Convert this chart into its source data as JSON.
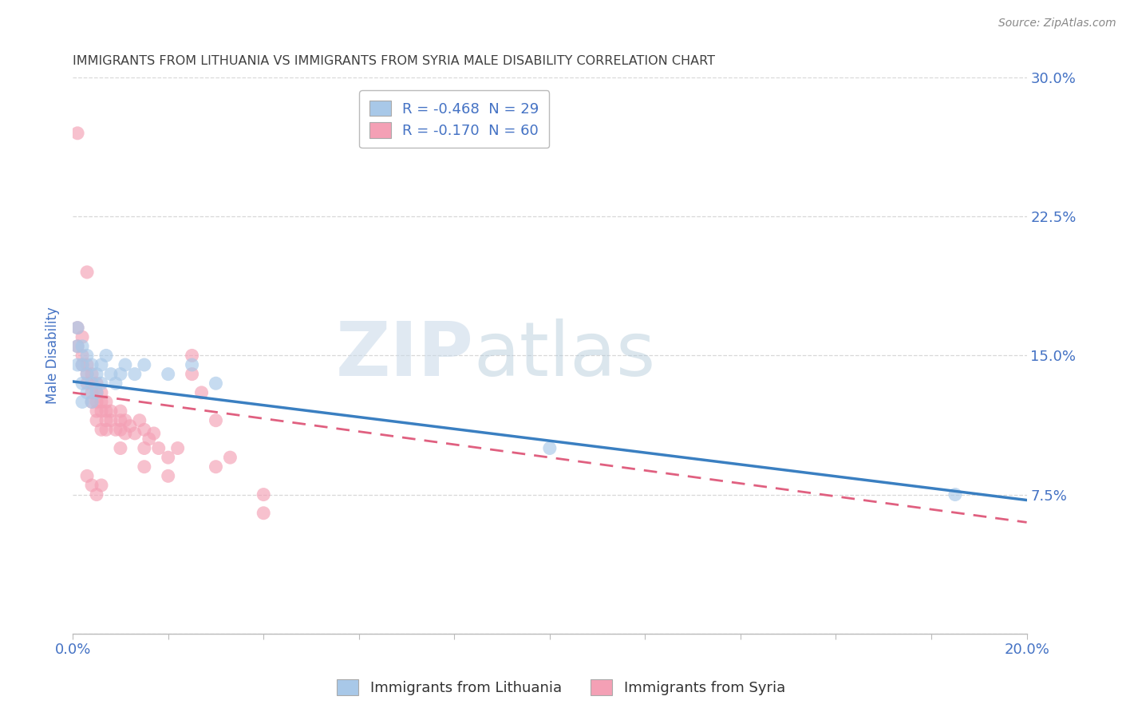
{
  "title": "IMMIGRANTS FROM LITHUANIA VS IMMIGRANTS FROM SYRIA MALE DISABILITY CORRELATION CHART",
  "source": "Source: ZipAtlas.com",
  "ylabel": "Male Disability",
  "xlim": [
    0.0,
    0.2
  ],
  "ylim": [
    0.0,
    0.3
  ],
  "xticks": [
    0.0,
    0.02,
    0.04,
    0.06,
    0.08,
    0.1,
    0.12,
    0.14,
    0.16,
    0.18,
    0.2
  ],
  "yticks": [
    0.0,
    0.075,
    0.15,
    0.225,
    0.3
  ],
  "legend_entries": [
    {
      "label": "R = -0.468  N = 29",
      "color": "#a8c8e8"
    },
    {
      "label": "R = -0.170  N = 60",
      "color": "#f4a0b5"
    }
  ],
  "lithuania_points": [
    [
      0.001,
      0.165
    ],
    [
      0.001,
      0.155
    ],
    [
      0.001,
      0.145
    ],
    [
      0.002,
      0.155
    ],
    [
      0.002,
      0.145
    ],
    [
      0.002,
      0.135
    ],
    [
      0.002,
      0.125
    ],
    [
      0.003,
      0.15
    ],
    [
      0.003,
      0.14
    ],
    [
      0.003,
      0.13
    ],
    [
      0.004,
      0.145
    ],
    [
      0.004,
      0.135
    ],
    [
      0.004,
      0.125
    ],
    [
      0.005,
      0.14
    ],
    [
      0.005,
      0.13
    ],
    [
      0.006,
      0.145
    ],
    [
      0.006,
      0.135
    ],
    [
      0.007,
      0.15
    ],
    [
      0.008,
      0.14
    ],
    [
      0.009,
      0.135
    ],
    [
      0.01,
      0.14
    ],
    [
      0.011,
      0.145
    ],
    [
      0.013,
      0.14
    ],
    [
      0.015,
      0.145
    ],
    [
      0.02,
      0.14
    ],
    [
      0.025,
      0.145
    ],
    [
      0.03,
      0.135
    ],
    [
      0.1,
      0.1
    ],
    [
      0.185,
      0.075
    ]
  ],
  "syria_points": [
    [
      0.001,
      0.27
    ],
    [
      0.003,
      0.195
    ],
    [
      0.001,
      0.165
    ],
    [
      0.002,
      0.16
    ],
    [
      0.001,
      0.155
    ],
    [
      0.002,
      0.15
    ],
    [
      0.002,
      0.145
    ],
    [
      0.003,
      0.145
    ],
    [
      0.003,
      0.14
    ],
    [
      0.003,
      0.135
    ],
    [
      0.004,
      0.14
    ],
    [
      0.004,
      0.135
    ],
    [
      0.004,
      0.13
    ],
    [
      0.004,
      0.125
    ],
    [
      0.005,
      0.135
    ],
    [
      0.005,
      0.13
    ],
    [
      0.005,
      0.125
    ],
    [
      0.005,
      0.12
    ],
    [
      0.005,
      0.115
    ],
    [
      0.006,
      0.13
    ],
    [
      0.006,
      0.125
    ],
    [
      0.006,
      0.12
    ],
    [
      0.006,
      0.11
    ],
    [
      0.007,
      0.125
    ],
    [
      0.007,
      0.12
    ],
    [
      0.007,
      0.115
    ],
    [
      0.007,
      0.11
    ],
    [
      0.008,
      0.12
    ],
    [
      0.008,
      0.115
    ],
    [
      0.009,
      0.11
    ],
    [
      0.01,
      0.12
    ],
    [
      0.01,
      0.115
    ],
    [
      0.01,
      0.11
    ],
    [
      0.01,
      0.1
    ],
    [
      0.011,
      0.115
    ],
    [
      0.011,
      0.108
    ],
    [
      0.012,
      0.112
    ],
    [
      0.013,
      0.108
    ],
    [
      0.014,
      0.115
    ],
    [
      0.015,
      0.11
    ],
    [
      0.015,
      0.1
    ],
    [
      0.015,
      0.09
    ],
    [
      0.016,
      0.105
    ],
    [
      0.017,
      0.108
    ],
    [
      0.018,
      0.1
    ],
    [
      0.02,
      0.095
    ],
    [
      0.02,
      0.085
    ],
    [
      0.022,
      0.1
    ],
    [
      0.025,
      0.15
    ],
    [
      0.025,
      0.14
    ],
    [
      0.027,
      0.13
    ],
    [
      0.03,
      0.115
    ],
    [
      0.03,
      0.09
    ],
    [
      0.033,
      0.095
    ],
    [
      0.003,
      0.085
    ],
    [
      0.004,
      0.08
    ],
    [
      0.005,
      0.075
    ],
    [
      0.006,
      0.08
    ],
    [
      0.04,
      0.065
    ],
    [
      0.04,
      0.075
    ]
  ],
  "lithuania_color": "#a8c8e8",
  "syria_color": "#f4a0b5",
  "trendline_lithuania_color": "#3a7fc1",
  "trendline_syria_color": "#e06080",
  "trendline_syria_style": "dashed",
  "watermark_zip": "ZIP",
  "watermark_atlas": "atlas",
  "background_color": "#ffffff",
  "grid_color": "#d8d8d8",
  "title_color": "#404040",
  "tick_label_color": "#4472c4"
}
